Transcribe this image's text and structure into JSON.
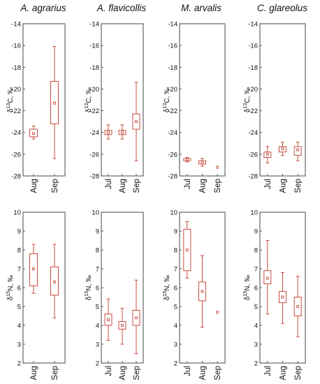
{
  "species_titles": [
    "A. agrarius",
    "A. flavicollis",
    "M. arvalis",
    "C. glareolus"
  ],
  "colors": {
    "box": "#c0392b",
    "axis": "#333333",
    "text": "#111111"
  },
  "chart_data": [
    {
      "type": "box",
      "species": "A. agrarius",
      "ylabel_main": "δ",
      "ylabel_sup": "13",
      "ylabel_rest": "C, ‰",
      "ylim": [
        -28,
        -14
      ],
      "yticks": [
        "-14",
        "-16",
        "-18",
        "-20",
        "-22",
        "-24",
        "-26",
        "-28"
      ],
      "categories": [
        "Aug",
        "Sep"
      ],
      "boxes": [
        {
          "min": -24.6,
          "q1": -24.4,
          "median": -24.1,
          "q3": -23.7,
          "max": -23.4
        },
        {
          "min": -26.4,
          "q1": -23.2,
          "median": -21.3,
          "q3": -19.3,
          "max": -16.1
        }
      ]
    },
    {
      "type": "box",
      "species": "A. flavicollis",
      "ylabel_main": "δ",
      "ylabel_sup": "13",
      "ylabel_rest": "C, ‰",
      "ylim": [
        -28,
        -14
      ],
      "yticks": [
        "-14",
        "-16",
        "-18",
        "-20",
        "-22",
        "-24",
        "-26",
        "-28"
      ],
      "categories": [
        "Jul",
        "Aug",
        "Sep"
      ],
      "boxes": [
        {
          "min": -24.6,
          "q1": -24.2,
          "median": -24.0,
          "q3": -23.8,
          "max": -23.3
        },
        {
          "min": -24.6,
          "q1": -24.2,
          "median": -24.0,
          "q3": -23.8,
          "max": -23.3
        },
        {
          "min": -26.6,
          "q1": -23.7,
          "median": -23.0,
          "q3": -22.3,
          "max": -19.4
        }
      ]
    },
    {
      "type": "box",
      "species": "M. arvalis",
      "ylabel_main": "δ",
      "ylabel_sup": "13",
      "ylabel_rest": "C, ‰",
      "ylim": [
        -28,
        -14
      ],
      "yticks": [
        "-14",
        "-16",
        "-18",
        "-20",
        "-22",
        "-24",
        "-26",
        "-28"
      ],
      "categories": [
        "Jul",
        "Aug",
        "Sep"
      ],
      "boxes": [
        {
          "min": -26.7,
          "q1": -26.6,
          "median": -26.5,
          "q3": -26.4,
          "max": -26.3
        },
        {
          "min": -27.1,
          "q1": -26.9,
          "median": -26.8,
          "q3": -26.6,
          "max": -26.4
        },
        {
          "single": -27.2
        }
      ]
    },
    {
      "type": "box",
      "species": "C. glareolus",
      "ylabel_main": "δ",
      "ylabel_sup": "13",
      "ylabel_rest": "C, ‰",
      "ylim": [
        -28,
        -14
      ],
      "yticks": [
        "-14",
        "-16",
        "-18",
        "-20",
        "-22",
        "-24",
        "-26",
        "-28"
      ],
      "categories": [
        "Jul",
        "Aug",
        "Sep"
      ],
      "boxes": [
        {
          "min": -26.8,
          "q1": -26.3,
          "median": -26.0,
          "q3": -25.8,
          "max": -25.3
        },
        {
          "min": -26.1,
          "q1": -25.8,
          "median": -25.5,
          "q3": -25.3,
          "max": -24.9
        },
        {
          "min": -26.6,
          "q1": -26.1,
          "median": -25.6,
          "q3": -25.3,
          "max": -24.9
        }
      ]
    },
    {
      "type": "box",
      "species": "A. agrarius",
      "ylabel_main": "δ",
      "ylabel_sup": "15",
      "ylabel_rest": "N, ‰",
      "ylim": [
        2,
        10
      ],
      "yticks": [
        "10",
        "9",
        "8",
        "7",
        "6",
        "5",
        "4",
        "3",
        "2"
      ],
      "categories": [
        "Aug",
        "Sep"
      ],
      "boxes": [
        {
          "min": 5.7,
          "q1": 6.1,
          "median": 7.0,
          "q3": 7.8,
          "max": 8.3
        },
        {
          "min": 4.4,
          "q1": 5.6,
          "median": 6.3,
          "q3": 7.1,
          "max": 8.3
        }
      ]
    },
    {
      "type": "box",
      "species": "A. flavicollis",
      "ylabel_main": "δ",
      "ylabel_sup": "15",
      "ylabel_rest": "N, ‰",
      "ylim": [
        2,
        10
      ],
      "yticks": [
        "10",
        "9",
        "8",
        "7",
        "6",
        "5",
        "4",
        "3",
        "2"
      ],
      "categories": [
        "Jul",
        "Aug",
        "Sep"
      ],
      "boxes": [
        {
          "min": 3.2,
          "q1": 4.0,
          "median": 4.3,
          "q3": 4.6,
          "max": 5.4
        },
        {
          "min": 3.0,
          "q1": 3.8,
          "median": 4.0,
          "q3": 4.2,
          "max": 4.9
        },
        {
          "min": 2.5,
          "q1": 4.0,
          "median": 4.4,
          "q3": 4.8,
          "max": 6.4
        }
      ]
    },
    {
      "type": "box",
      "species": "M. arvalis",
      "ylabel_main": "δ",
      "ylabel_sup": "15",
      "ylabel_rest": "N, ‰",
      "ylim": [
        2,
        10
      ],
      "yticks": [
        "10",
        "9",
        "8",
        "7",
        "6",
        "5",
        "4",
        "3",
        "2"
      ],
      "categories": [
        "Jul",
        "Aug",
        "Sep"
      ],
      "boxes": [
        {
          "min": 6.5,
          "q1": 6.9,
          "median": 8.0,
          "q3": 9.1,
          "max": 9.5
        },
        {
          "min": 3.9,
          "q1": 5.3,
          "median": 5.8,
          "q3": 6.3,
          "max": 7.7
        },
        {
          "single": 4.7
        }
      ]
    },
    {
      "type": "box",
      "species": "C. glareolus",
      "ylabel_main": "δ",
      "ylabel_sup": "15",
      "ylabel_rest": "N, ‰",
      "ylim": [
        2,
        10
      ],
      "yticks": [
        "10",
        "9",
        "8",
        "7",
        "6",
        "5",
        "4",
        "3",
        "2"
      ],
      "categories": [
        "Jul",
        "Aug",
        "Sep"
      ],
      "boxes": [
        {
          "min": 4.6,
          "q1": 6.2,
          "median": 6.5,
          "q3": 6.9,
          "max": 8.5
        },
        {
          "min": 4.1,
          "q1": 5.2,
          "median": 5.5,
          "q3": 5.8,
          "max": 6.8
        },
        {
          "min": 3.4,
          "q1": 4.5,
          "median": 5.0,
          "q3": 5.5,
          "max": 6.6
        }
      ]
    }
  ]
}
